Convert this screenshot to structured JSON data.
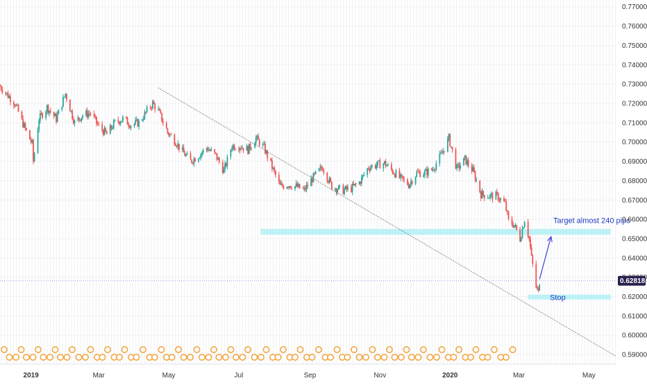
{
  "chart_data": {
    "type": "candlestick",
    "title": "",
    "xlabel": "",
    "ylabel": "",
    "ylim": [
      0.585,
      0.7735
    ],
    "y_ticks": [
      0.77,
      0.76,
      0.75,
      0.74,
      0.73,
      0.72,
      0.71,
      0.7,
      0.69,
      0.68,
      0.67,
      0.66,
      0.65,
      0.64,
      0.63,
      0.62,
      0.61,
      0.6,
      0.59
    ],
    "y_tick_labels": [
      "0.77000",
      "0.76000",
      "0.75000",
      "0.74000",
      "0.73000",
      "0.72000",
      "0.71000",
      "0.70000",
      "0.69000",
      "0.68000",
      "0.67000",
      "0.66000",
      "0.65000",
      "0.64000",
      "0.63000",
      "0.62000",
      "0.61000",
      "0.60000",
      "0.59000"
    ],
    "x_range": [
      "2018-12-05",
      "2020-05-25"
    ],
    "x_ticks": [
      {
        "label": "2019",
        "date": "2019-01-01",
        "bold": true
      },
      {
        "label": "Mar",
        "date": "2019-03-01",
        "bold": false
      },
      {
        "label": "May",
        "date": "2019-05-01",
        "bold": false
      },
      {
        "label": "Jul",
        "date": "2019-07-01",
        "bold": false
      },
      {
        "label": "Sep",
        "date": "2019-09-01",
        "bold": false
      },
      {
        "label": "Nov",
        "date": "2019-11-01",
        "bold": false
      },
      {
        "label": "2020",
        "date": "2020-01-01",
        "bold": true
      },
      {
        "label": "Mar",
        "date": "2020-03-01",
        "bold": false
      },
      {
        "label": "May",
        "date": "2020-05-01",
        "bold": false
      }
    ],
    "price_points": [
      [
        "2018-12-05",
        0.729
      ],
      [
        "2018-12-12",
        0.724
      ],
      [
        "2018-12-18",
        0.72
      ],
      [
        "2018-12-26",
        0.708
      ],
      [
        "2019-01-02",
        0.699
      ],
      [
        "2019-01-03",
        0.69
      ],
      [
        "2019-01-08",
        0.712
      ],
      [
        "2019-01-15",
        0.718
      ],
      [
        "2019-01-23",
        0.712
      ],
      [
        "2019-01-31",
        0.725
      ],
      [
        "2019-02-08",
        0.71
      ],
      [
        "2019-02-15",
        0.714
      ],
      [
        "2019-02-22",
        0.715
      ],
      [
        "2019-03-01",
        0.708
      ],
      [
        "2019-03-08",
        0.704
      ],
      [
        "2019-03-15",
        0.71
      ],
      [
        "2019-03-22",
        0.712
      ],
      [
        "2019-03-29",
        0.709
      ],
      [
        "2019-04-05",
        0.71
      ],
      [
        "2019-04-12",
        0.716
      ],
      [
        "2019-04-17",
        0.72
      ],
      [
        "2019-04-22",
        0.716
      ],
      [
        "2019-04-30",
        0.705
      ],
      [
        "2019-05-06",
        0.701
      ],
      [
        "2019-05-13",
        0.695
      ],
      [
        "2019-05-20",
        0.69
      ],
      [
        "2019-05-27",
        0.693
      ],
      [
        "2019-06-03",
        0.697
      ],
      [
        "2019-06-11",
        0.693
      ],
      [
        "2019-06-18",
        0.685
      ],
      [
        "2019-06-25",
        0.698
      ],
      [
        "2019-07-02",
        0.698
      ],
      [
        "2019-07-09",
        0.696
      ],
      [
        "2019-07-16",
        0.702
      ],
      [
        "2019-07-23",
        0.697
      ],
      [
        "2019-07-30",
        0.687
      ],
      [
        "2019-08-06",
        0.677
      ],
      [
        "2019-08-13",
        0.678
      ],
      [
        "2019-08-20",
        0.677
      ],
      [
        "2019-08-27",
        0.675
      ],
      [
        "2019-09-03",
        0.681
      ],
      [
        "2019-09-12",
        0.687
      ],
      [
        "2019-09-20",
        0.677
      ],
      [
        "2019-09-30",
        0.675
      ],
      [
        "2019-10-07",
        0.676
      ],
      [
        "2019-10-14",
        0.679
      ],
      [
        "2019-10-22",
        0.687
      ],
      [
        "2019-10-28",
        0.688
      ],
      [
        "2019-11-05",
        0.689
      ],
      [
        "2019-11-12",
        0.685
      ],
      [
        "2019-11-19",
        0.681
      ],
      [
        "2019-11-26",
        0.678
      ],
      [
        "2019-12-03",
        0.684
      ],
      [
        "2019-12-10",
        0.684
      ],
      [
        "2019-12-17",
        0.686
      ],
      [
        "2019-12-24",
        0.693
      ],
      [
        "2019-12-31",
        0.702
      ],
      [
        "2020-01-07",
        0.686
      ],
      [
        "2020-01-14",
        0.691
      ],
      [
        "2020-01-21",
        0.685
      ],
      [
        "2020-01-28",
        0.673
      ],
      [
        "2020-02-04",
        0.672
      ],
      [
        "2020-02-11",
        0.672
      ],
      [
        "2020-02-18",
        0.668
      ],
      [
        "2020-02-21",
        0.659
      ],
      [
        "2020-02-26",
        0.657
      ],
      [
        "2020-03-02",
        0.65
      ],
      [
        "2020-03-06",
        0.66
      ],
      [
        "2020-03-10",
        0.65
      ],
      [
        "2020-03-12",
        0.64
      ],
      [
        "2020-03-16",
        0.625
      ],
      [
        "2020-03-18",
        0.622
      ],
      [
        "2020-03-19",
        0.6282
      ]
    ],
    "last_price": {
      "label": "0.62818",
      "value": 0.62818
    },
    "annotations": [
      {
        "kind": "trendline",
        "from": [
          "2019-04-22",
          0.728
        ],
        "to": [
          "2020-05-25",
          0.589
        ]
      },
      {
        "kind": "zone",
        "x0": "2019-07-20",
        "x1": "2020-05-20",
        "y0": 0.652,
        "y1": 0.655
      },
      {
        "kind": "zone",
        "x0": "2020-03-09",
        "x1": "2020-05-20",
        "y0": 0.6185,
        "y1": 0.621
      },
      {
        "kind": "arrow",
        "from": [
          "2020-03-19",
          0.629
        ],
        "to": [
          "2020-03-29",
          0.651
        ]
      },
      {
        "kind": "text",
        "text": "Target almost 240 pips",
        "at": [
          "2020-03-31",
          0.658
        ]
      },
      {
        "kind": "text",
        "text": "Stop",
        "at": [
          "2020-03-28",
          0.6197
        ]
      }
    ],
    "colors": {
      "up": "#26a69a",
      "down": "#ef5350",
      "zone": "#b2f0f5",
      "arrow": "#3b3fd6",
      "trendline": "#777777",
      "price_label_bg": "#2b1f4f",
      "grid": "#f0f1f4",
      "event_icon": "#f3a642"
    }
  }
}
